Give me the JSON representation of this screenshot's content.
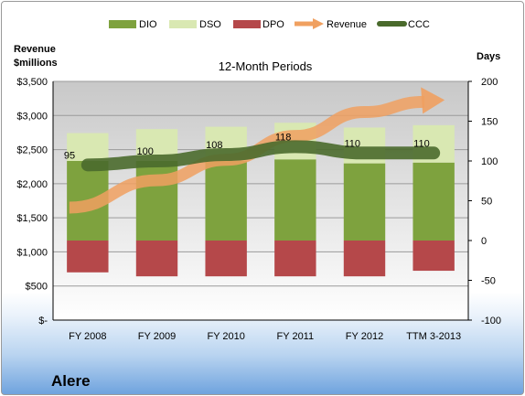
{
  "company": "Alere",
  "chart_data": {
    "type": "bar",
    "title": "12-Month Periods",
    "y_left_label": [
      "Revenue",
      "$millions"
    ],
    "y_right_label": "Days",
    "categories": [
      "FY 2008",
      "FY 2009",
      "FY 2010",
      "FY 2011",
      "FY 2012",
      "TTM 3-2013"
    ],
    "y_left": {
      "min": 0,
      "max": 3500,
      "step": 500,
      "ticks": [
        "$-",
        "$500",
        "$1,000",
        "$1,500",
        "$2,000",
        "$2,500",
        "$3,000",
        "$3,500"
      ]
    },
    "y_right": {
      "min": -100,
      "max": 200,
      "step": 50,
      "ticks": [
        "-100",
        "-50",
        "0",
        "50",
        "100",
        "150",
        "200"
      ]
    },
    "legend_position": "top",
    "series": [
      {
        "name": "DIO",
        "kind": "stacked-bar",
        "axis": "right",
        "color": "#7ea23e",
        "values": [
          100,
          100,
          100,
          102,
          97,
          98
        ]
      },
      {
        "name": "DSO",
        "kind": "stacked-bar",
        "axis": "right",
        "color": "#d9e8b2",
        "values": [
          35,
          40,
          43,
          46,
          45,
          47
        ]
      },
      {
        "name": "DPO",
        "kind": "negative-bar",
        "axis": "right",
        "color": "#b5484a",
        "values": [
          -40,
          -45,
          -45,
          -45,
          -45,
          -38
        ]
      },
      {
        "name": "Revenue",
        "kind": "arrow",
        "axis": "left",
        "color": "#f0a060",
        "values": [
          1650,
          2050,
          2350,
          2700,
          3050,
          3200
        ]
      },
      {
        "name": "CCC",
        "kind": "line",
        "axis": "right",
        "color": "#4a6a2c",
        "values": [
          95,
          100,
          108,
          118,
          110,
          110
        ],
        "labels": [
          "95",
          "100",
          "108",
          "118",
          "110",
          "110"
        ]
      }
    ]
  }
}
